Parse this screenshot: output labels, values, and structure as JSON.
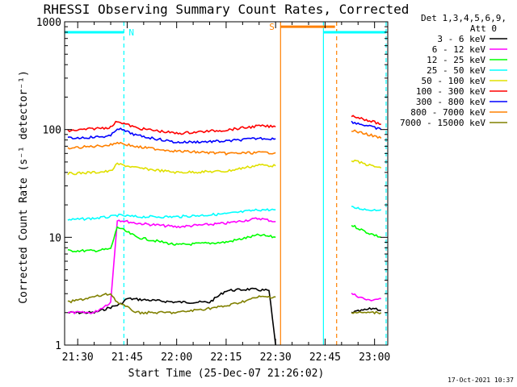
{
  "chart_data": {
    "type": "line",
    "title": "RHESSI Observing Summary Count Rates, Corrected",
    "xlabel": "Start Time (25-Dec-07 21:26:02)",
    "ylabel": "Corrected Count Rate (s⁻¹ detector⁻¹)",
    "xlim": [
      "21:26:02",
      "23:04:00"
    ],
    "ylim": [
      1,
      1000
    ],
    "yscale": "log",
    "x_ticks": [
      "21:30",
      "21:45",
      "22:00",
      "22:15",
      "22:30",
      "22:45",
      "23:00"
    ],
    "y_ticks": [
      "1",
      "10",
      "100",
      "1000"
    ],
    "legend": {
      "placement": "outside-right",
      "header": "Det 1,3,4,5,6,9,",
      "attenuator": "Att 0"
    },
    "series": [
      {
        "name": "3 - 6 keV",
        "color": "#000000",
        "x": [
          "21:27",
          "21:35",
          "21:43",
          "21:45",
          "22:00",
          "22:10",
          "22:15",
          "22:22",
          "22:28",
          "22:30",
          "22:50",
          "22:53",
          "23:00",
          "23:02"
        ],
        "y": [
          2.0,
          2.0,
          2.4,
          2.7,
          2.5,
          2.5,
          3.2,
          3.3,
          3.2,
          1.0,
          null,
          2.0,
          2.2,
          2.1
        ]
      },
      {
        "name": "6 - 12 keV",
        "color": "#ff00ff",
        "x": [
          "21:27",
          "21:35",
          "21:40",
          "21:42",
          "21:48",
          "22:00",
          "22:15",
          "22:25",
          "22:30",
          "22:50",
          "22:53",
          "22:58",
          "23:02"
        ],
        "y": [
          2.0,
          2.0,
          2.5,
          14.5,
          13.5,
          12.5,
          13.5,
          15.0,
          14.0,
          null,
          3.0,
          2.6,
          2.7
        ]
      },
      {
        "name": "12 - 25 keV",
        "color": "#00ff00",
        "x": [
          "21:27",
          "21:35",
          "21:40",
          "21:42",
          "21:48",
          "22:00",
          "22:15",
          "22:25",
          "22:30",
          "22:50",
          "22:53",
          "22:58",
          "23:02"
        ],
        "y": [
          7.5,
          7.5,
          7.8,
          12.5,
          10.0,
          8.5,
          9.0,
          10.5,
          10.0,
          null,
          13.0,
          11.0,
          10.0
        ]
      },
      {
        "name": "25 - 50 keV",
        "color": "#00ffff",
        "x": [
          "21:27",
          "21:35",
          "21:40",
          "21:42",
          "21:48",
          "22:00",
          "22:15",
          "22:25",
          "22:30",
          "22:50",
          "22:53",
          "22:58",
          "23:02"
        ],
        "y": [
          14.5,
          15.0,
          15.5,
          16.0,
          15.5,
          15.5,
          16.5,
          18.0,
          18.0,
          null,
          19.0,
          18.0,
          18.0
        ]
      },
      {
        "name": "50 - 100 keV",
        "color": "#e0e000",
        "x": [
          "21:27",
          "21:35",
          "21:40",
          "21:42",
          "21:48",
          "22:00",
          "22:15",
          "22:25",
          "22:30",
          "22:50",
          "22:53",
          "22:58",
          "23:02"
        ],
        "y": [
          39.0,
          40.0,
          41.0,
          48.0,
          44.0,
          40.0,
          41.0,
          47.0,
          46.0,
          null,
          52.0,
          47.0,
          44.0
        ]
      },
      {
        "name": "100 - 300 keV",
        "color": "#ff0000",
        "x": [
          "21:27",
          "21:35",
          "21:40",
          "21:42",
          "21:48",
          "22:00",
          "22:15",
          "22:25",
          "22:30",
          "22:50",
          "22:53",
          "22:58",
          "23:02"
        ],
        "y": [
          97.0,
          102.0,
          105.0,
          120.0,
          103.0,
          92.0,
          99.0,
          108.0,
          106.0,
          null,
          135.0,
          122.0,
          112.0
        ]
      },
      {
        "name": "300 - 800 keV",
        "color": "#0000ff",
        "x": [
          "21:27",
          "21:35",
          "21:40",
          "21:42",
          "21:48",
          "22:00",
          "22:15",
          "22:25",
          "22:30",
          "22:50",
          "22:53",
          "22:58",
          "23:02"
        ],
        "y": [
          83.0,
          85.0,
          87.0,
          103.0,
          88.0,
          76.0,
          78.0,
          83.0,
          82.0,
          null,
          118.0,
          108.0,
          100.0
        ]
      },
      {
        "name": "800 - 7000 keV",
        "color": "#ff8000",
        "x": [
          "21:27",
          "21:35",
          "21:40",
          "21:42",
          "21:48",
          "22:00",
          "22:15",
          "22:25",
          "22:30",
          "22:50",
          "22:53",
          "22:58",
          "23:02"
        ],
        "y": [
          67.0,
          70.0,
          72.0,
          76.0,
          69.0,
          63.0,
          60.0,
          61.0,
          61.0,
          null,
          98.0,
          90.0,
          83.0
        ]
      },
      {
        "name": "7000 - 15000 keV",
        "color": "#808000",
        "x": [
          "21:27",
          "21:35",
          "21:40",
          "21:42",
          "21:48",
          "22:00",
          "22:15",
          "22:25",
          "22:30",
          "22:50",
          "22:53",
          "22:58",
          "23:02"
        ],
        "y": [
          2.5,
          2.8,
          3.0,
          2.5,
          2.0,
          2.0,
          2.3,
          2.8,
          2.8,
          null,
          2.0,
          2.0,
          2.0
        ]
      }
    ],
    "annotations": [
      {
        "label": "N",
        "color": "#00ffff",
        "x_start": "21:26:02",
        "x_end": "21:44:00",
        "y": 800
      },
      {
        "label": "S",
        "color": "#ff8000",
        "x_start": "22:31:30",
        "x_end": "22:48:00",
        "y": 900
      },
      {
        "label": "",
        "color": "#00ffff",
        "x_start": "22:44:30",
        "x_end": "23:03:30",
        "y": 800
      }
    ],
    "vlines": [
      {
        "x": "21:44:00",
        "color": "#00ffff",
        "dashed": true
      },
      {
        "x": "22:31:30",
        "color": "#ff8000",
        "dashed": false
      },
      {
        "x": "22:44:30",
        "color": "#00ffff",
        "dashed": false
      },
      {
        "x": "22:48:30",
        "color": "#ff8000",
        "dashed": true
      },
      {
        "x": "23:03:30",
        "color": "#00ffff",
        "dashed": true
      }
    ],
    "footer": "17-Oct-2021 10:37"
  }
}
